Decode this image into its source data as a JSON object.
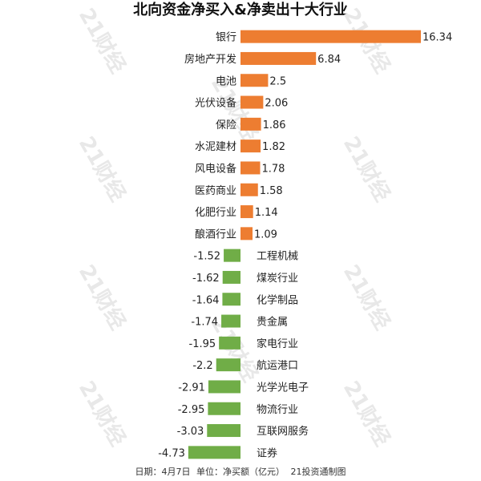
{
  "title": "北向资金净买入&净卖出十大行业",
  "watermark": "21财经",
  "footer": {
    "date": "日期：4月7日",
    "unit": "单位：净买额（亿元）",
    "source": "21投资通制图"
  },
  "chart_data": {
    "type": "bar",
    "orientation": "horizontal",
    "title": "北向资金净买入&净卖出十大行业",
    "categories": [
      "银行",
      "房地产开发",
      "电池",
      "光伏设备",
      "保险",
      "水泥建材",
      "风电设备",
      "医药商业",
      "化肥行业",
      "酿酒行业",
      "工程机械",
      "煤炭行业",
      "化学制品",
      "贵金属",
      "家电行业",
      "航运港口",
      "光学光电子",
      "物流行业",
      "互联网服务",
      "证券"
    ],
    "values": [
      16.34,
      6.84,
      2.5,
      2.06,
      1.86,
      1.82,
      1.78,
      1.58,
      1.14,
      1.09,
      -1.52,
      -1.62,
      -1.64,
      -1.74,
      -1.95,
      -2.2,
      -2.91,
      -2.95,
      -3.03,
      -4.73
    ],
    "value_labels": [
      "16.34",
      "6.84",
      "2.5",
      "2.06",
      "1.86",
      "1.82",
      "1.78",
      "1.58",
      "1.14",
      "1.09",
      "-1.52",
      "-1.62",
      "-1.64",
      "-1.74",
      "-1.95",
      "-2.2",
      "-2.91",
      "-2.95",
      "-3.03",
      "-4.73"
    ],
    "colors": {
      "positive": "#ED7D31",
      "negative": "#70AD47"
    },
    "grid": false,
    "legend": "none"
  }
}
